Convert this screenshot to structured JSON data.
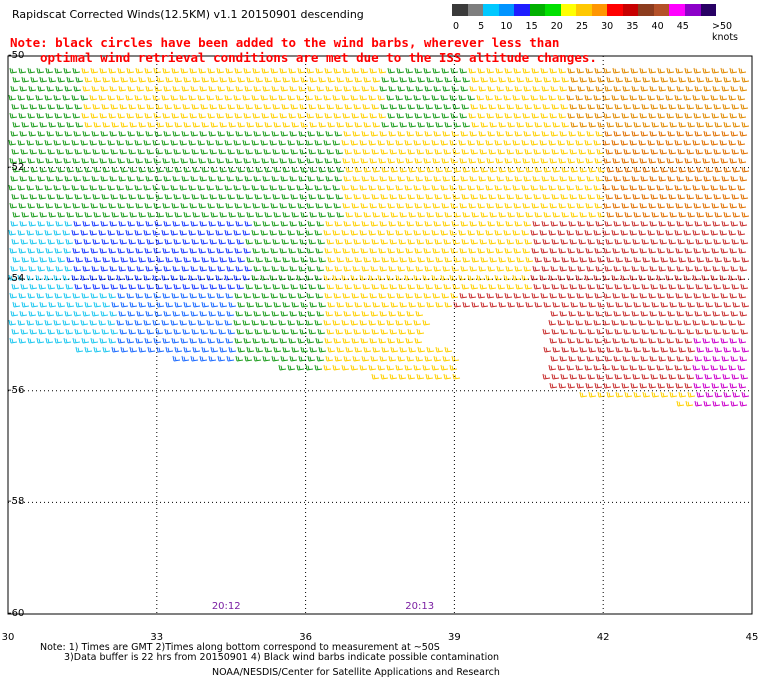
{
  "header": {
    "title": "Rapidscat Corrected Winds(12.5KM) v1.1 20150901 descending",
    "note_line1": "Note: black circles have been added to the wind barbs, wherever less than",
    "note_line2": "optimal wind retrieval conditions are met due to the ISS altitude changes."
  },
  "colorbar": {
    "labels": [
      "0",
      "5",
      "10",
      "15",
      "20",
      "25",
      "30",
      "35",
      "40",
      "45",
      ">50 knots"
    ],
    "colors": [
      "#3a3a3a",
      "#7e7e7e",
      "#00c8ff",
      "#0094ff",
      "#1e1eff",
      "#00b000",
      "#00e000",
      "#ffff00",
      "#ffc800",
      "#ff9600",
      "#ff0000",
      "#c80000",
      "#8c3c1e",
      "#b45028",
      "#ff00ff",
      "#8c00c8",
      "#280064"
    ]
  },
  "map": {
    "x_ticks": [
      "30",
      "33",
      "36",
      "39",
      "42",
      "45"
    ],
    "y_ticks": [
      "-50",
      "-52",
      "-54",
      "-56",
      "-58",
      "-60"
    ],
    "time_labels": [
      {
        "text": "20:12",
        "lon": 34.4
      },
      {
        "text": "20:13",
        "lon": 38.3
      }
    ],
    "lon_range": [
      30,
      45
    ],
    "lat_range": [
      -60,
      -50
    ]
  },
  "footer": {
    "line1": "Note: 1) Times are GMT 2)Times along bottom correspond to measurement at ~50S",
    "line2": "3)Data buffer is 22 hrs from 20150901 4) Black wind barbs indicate possible contamination",
    "line3": "NOAA/NESDIS/Center for Satellite Applications and Research"
  }
}
